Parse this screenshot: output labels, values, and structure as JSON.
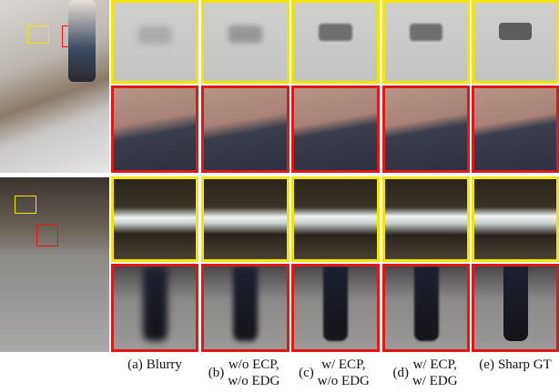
{
  "captions": [
    {
      "label": "(a)",
      "lines": [
        "Blurry"
      ]
    },
    {
      "label": "(b)",
      "lines": [
        "w/o ECP,",
        "w/o EDG"
      ]
    },
    {
      "label": "(c)",
      "lines": [
        "w/ ECP,",
        "w/o EDG"
      ]
    },
    {
      "label": "(d)",
      "lines": [
        "w/ ECP,",
        "w/ EDG"
      ]
    },
    {
      "label": "(e)",
      "lines": [
        "Sharp GT"
      ]
    }
  ]
}
